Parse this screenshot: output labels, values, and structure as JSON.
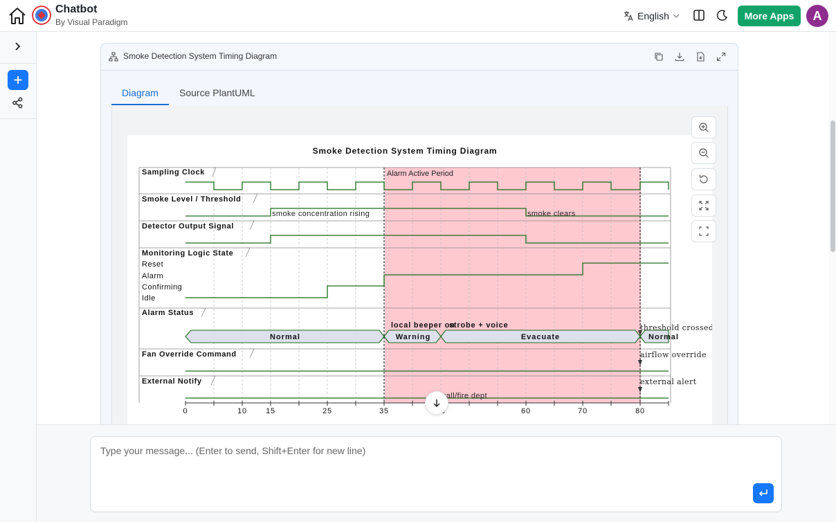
{
  "app": {
    "title": "Chatbot",
    "subtitle": "By Visual Paradigm"
  },
  "header": {
    "language": "English",
    "more_apps": "More Apps",
    "avatar_initial": "A"
  },
  "card": {
    "title": "Smoke Detection System Timing Diagram"
  },
  "tabs": [
    {
      "label": "Diagram",
      "active": true
    },
    {
      "label": "Source PlantUML",
      "active": false
    }
  ],
  "diagram": {
    "title": "Smoke Detection System Timing Diagram",
    "alarm_period_label": "Alarm Active Period",
    "lanes": {
      "clock": "Sampling Clock",
      "smoke": "Smoke Level / Threshold",
      "detector": "Detector Output Signal",
      "logic": "Monitoring Logic State",
      "alarm": "Alarm Status",
      "fan": "Fan Override Command",
      "external": "External Notify"
    },
    "logic_states": [
      "Reset",
      "Alarm",
      "Confirming",
      "Idle"
    ],
    "alarm_states": [
      {
        "label": "Normal"
      },
      {
        "label": "Warning"
      },
      {
        "label": "Evacuate"
      },
      {
        "label": "Normal"
      }
    ],
    "notes": {
      "smoke_rising": "smoke concentration rising",
      "smoke_clears": "smoke clears",
      "local_beeper": "local beeper on",
      "strobe_voice": "strobe + voice",
      "threshold_crossed": "threshold crossed",
      "airflow_override": "airflow override",
      "external_alert": "external alert",
      "fire_dept": "call/fire dept"
    },
    "axis_ticks": [
      "0",
      "10",
      "15",
      "25",
      "35",
      "45",
      "60",
      "70",
      "80"
    ]
  },
  "composer": {
    "placeholder": "Type your message... (Enter to send, Shift+Enter for new line)"
  },
  "colors": {
    "accent": "#1677ff",
    "primary_green": "#11a36a",
    "alarm_highlight": "#ffc9d0",
    "signal": "#1a6b1a",
    "avatar": "#8e2d8e"
  }
}
